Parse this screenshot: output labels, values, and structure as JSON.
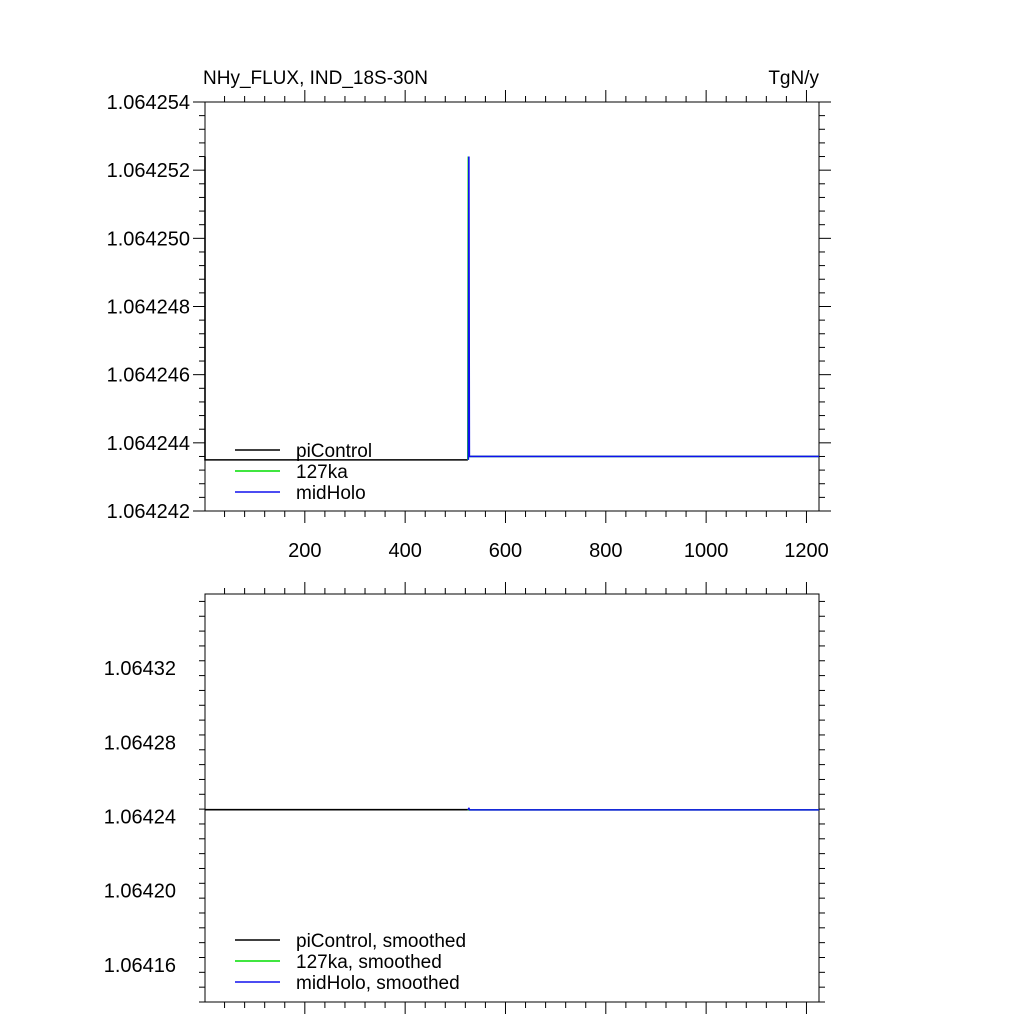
{
  "chart_data": [
    {
      "type": "line",
      "title_left": "NHy_FLUX, IND_18S-30N",
      "title_right": "TgN/y",
      "xlabel": "",
      "ylabel": "",
      "xlim": [
        1,
        1225
      ],
      "ylim": [
        1.064242,
        1.064254
      ],
      "xticks": [
        200,
        400,
        600,
        800,
        1000,
        1200
      ],
      "xtick_labels": [
        "200",
        "400",
        "600",
        "800",
        "1000",
        "1200"
      ],
      "yticks": [
        1.064242,
        1.064244,
        1.064246,
        1.064248,
        1.06425,
        1.064252,
        1.064254
      ],
      "ytick_labels": [
        "1.064242",
        "1.064244",
        "1.064246",
        "1.064248",
        "1.064250",
        "1.064252",
        "1.064254"
      ],
      "legend_position": "bottom-left",
      "series": [
        {
          "name": "piControl",
          "color": "#000000",
          "x": [
            1,
            1,
            3,
            525
          ],
          "y": [
            1.0642524,
            1.0642435,
            1.0642435,
            1.0642435
          ]
        },
        {
          "name": "127ka",
          "color": "#00dd00",
          "x": [
            525,
            526,
            527,
            1225
          ],
          "y": [
            1.0642435,
            1.0642524,
            1.0642436,
            1.0642436
          ]
        },
        {
          "name": "midHolo",
          "color": "#1010ee",
          "x": [
            526,
            527,
            528,
            1225
          ],
          "y": [
            1.0642435,
            1.0642524,
            1.0642436,
            1.0642436
          ]
        }
      ]
    },
    {
      "type": "line",
      "xlim": [
        1,
        1225
      ],
      "ylim": [
        1.06414,
        1.06436
      ],
      "xticks": [
        200,
        400,
        600,
        800,
        1000,
        1200
      ],
      "yticks": [
        1.06416,
        1.0642,
        1.06424,
        1.06428,
        1.06432
      ],
      "ytick_labels": [
        "1.06416",
        "1.06420",
        "1.06424",
        "1.06428",
        "1.06432"
      ],
      "legend_position": "bottom-left",
      "series": [
        {
          "name": "piControl, smoothed",
          "color": "#000000",
          "x": [
            1,
            525
          ],
          "y": [
            1.0642437,
            1.0642437
          ]
        },
        {
          "name": "127ka, smoothed",
          "color": "#00dd00",
          "x": [
            525,
            1225
          ],
          "y": [
            1.0642436,
            1.0642436
          ]
        },
        {
          "name": "midHolo, smoothed",
          "color": "#1010ee",
          "x": [
            526,
            527,
            528,
            1225
          ],
          "y": [
            1.0642436,
            1.0642447,
            1.0642436,
            1.0642436
          ]
        }
      ]
    }
  ]
}
